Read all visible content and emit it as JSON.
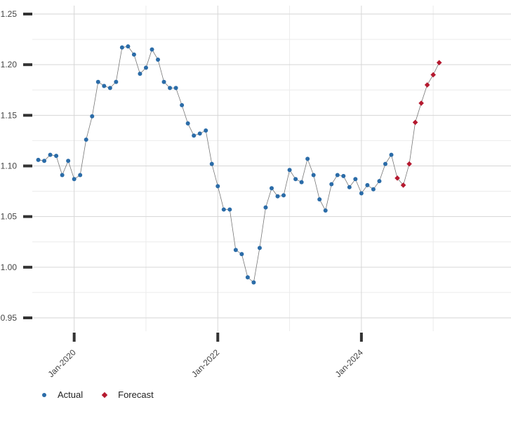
{
  "chart_data": {
    "type": "scatter",
    "title": "",
    "xlabel": "",
    "ylabel": "",
    "ylim": [
      0.95,
      1.25
    ],
    "yticks": [
      "0.95",
      "1.00",
      "1.05",
      "1.10",
      "1.15",
      "1.20",
      "1.25"
    ],
    "xlim": [
      "2019-06",
      "2026-02"
    ],
    "xticks": [
      {
        "label": "Jan-2020",
        "date": "2020-01"
      },
      {
        "label": "Jan-2022",
        "date": "2022-01"
      },
      {
        "label": "Jan-2024",
        "date": "2024-01"
      }
    ],
    "grid": true,
    "legend_position": "bottom-left",
    "series": [
      {
        "name": "Actual",
        "color": "#2b6ca8",
        "marker": "circle",
        "points": [
          [
            "2019-07",
            1.106
          ],
          [
            "2019-08",
            1.105
          ],
          [
            "2019-09",
            1.111
          ],
          [
            "2019-10",
            1.11
          ],
          [
            "2019-11",
            1.091
          ],
          [
            "2019-12",
            1.105
          ],
          [
            "2020-01",
            1.087
          ],
          [
            "2020-02",
            1.091
          ],
          [
            "2020-03",
            1.126
          ],
          [
            "2020-04",
            1.149
          ],
          [
            "2020-05",
            1.183
          ],
          [
            "2020-06",
            1.179
          ],
          [
            "2020-07",
            1.177
          ],
          [
            "2020-08",
            1.183
          ],
          [
            "2020-09",
            1.217
          ],
          [
            "2020-10",
            1.218
          ],
          [
            "2020-11",
            1.21
          ],
          [
            "2020-12",
            1.191
          ],
          [
            "2021-01",
            1.197
          ],
          [
            "2021-02",
            1.215
          ],
          [
            "2021-03",
            1.205
          ],
          [
            "2021-04",
            1.183
          ],
          [
            "2021-05",
            1.177
          ],
          [
            "2021-06",
            1.177
          ],
          [
            "2021-07",
            1.16
          ],
          [
            "2021-08",
            1.142
          ],
          [
            "2021-09",
            1.13
          ],
          [
            "2021-10",
            1.132
          ],
          [
            "2021-11",
            1.135
          ],
          [
            "2021-12",
            1.102
          ],
          [
            "2022-01",
            1.08
          ],
          [
            "2022-02",
            1.057
          ],
          [
            "2022-03",
            1.057
          ],
          [
            "2022-04",
            1.017
          ],
          [
            "2022-05",
            1.013
          ],
          [
            "2022-06",
            0.99
          ],
          [
            "2022-07",
            0.985
          ],
          [
            "2022-08",
            1.019
          ],
          [
            "2022-09",
            1.059
          ],
          [
            "2022-10",
            1.078
          ],
          [
            "2022-11",
            1.07
          ],
          [
            "2022-12",
            1.071
          ],
          [
            "2023-01",
            1.096
          ],
          [
            "2023-02",
            1.087
          ],
          [
            "2023-03",
            1.084
          ],
          [
            "2023-04",
            1.107
          ],
          [
            "2023-05",
            1.091
          ],
          [
            "2023-06",
            1.067
          ],
          [
            "2023-07",
            1.056
          ],
          [
            "2023-08",
            1.082
          ],
          [
            "2023-09",
            1.091
          ],
          [
            "2023-10",
            1.09
          ],
          [
            "2023-11",
            1.079
          ],
          [
            "2023-12",
            1.087
          ],
          [
            "2024-01",
            1.073
          ],
          [
            "2024-02",
            1.081
          ],
          [
            "2024-03",
            1.077
          ],
          [
            "2024-04",
            1.085
          ],
          [
            "2024-05",
            1.102
          ],
          [
            "2024-06",
            1.111
          ]
        ]
      },
      {
        "name": "Forecast",
        "color": "#b5192f",
        "marker": "diamond",
        "points": [
          [
            "2024-07",
            1.088
          ],
          [
            "2024-08",
            1.081
          ],
          [
            "2024-09",
            1.102
          ],
          [
            "2024-10",
            1.143
          ],
          [
            "2024-11",
            1.162
          ],
          [
            "2024-12",
            1.18
          ],
          [
            "2025-01",
            1.19
          ],
          [
            "2025-02",
            1.202
          ]
        ]
      }
    ]
  }
}
